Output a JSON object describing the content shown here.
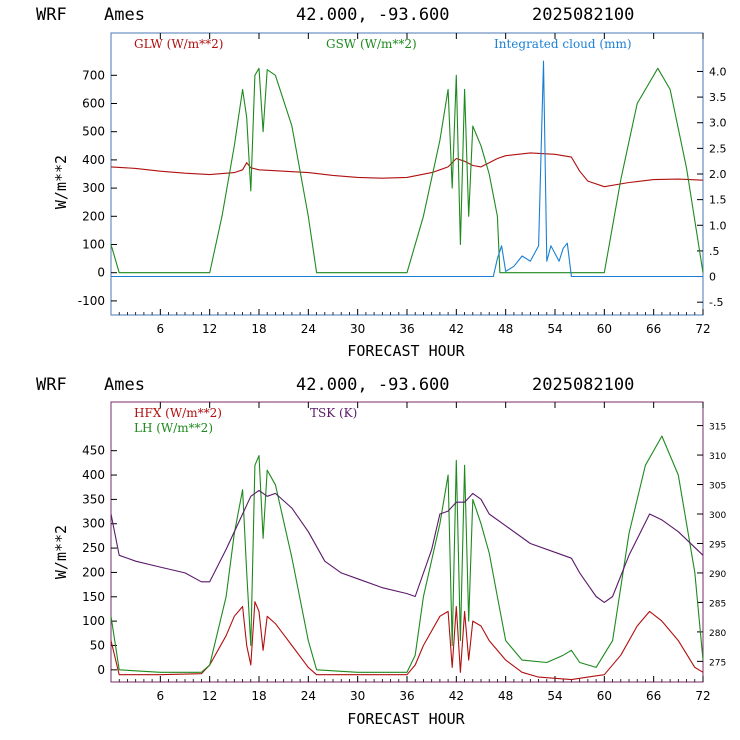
{
  "panels": [
    {
      "header": {
        "model": "WRF",
        "site": "Ames",
        "coords": "42.000, -93.600",
        "run": "2025082100"
      },
      "xlabel": "FORECAST HOUR",
      "ylabel": "W/m**2",
      "legend": [
        "GLW (W/m**2)",
        "GSW (W/m**2)",
        "Integrated cloud (mm)"
      ]
    },
    {
      "header": {
        "model": "WRF",
        "site": "Ames",
        "coords": "42.000, -93.600",
        "run": "2025082100"
      },
      "xlabel": "FORECAST HOUR",
      "ylabel": "W/m**2",
      "legend": [
        "HFX (W/m**2)",
        "LH (W/m**2)",
        "TSK (K)"
      ]
    }
  ],
  "chart_data": [
    {
      "type": "line",
      "xlim": [
        0,
        72
      ],
      "ylim": [
        -150,
        850
      ],
      "y2lim": [
        -0.75,
        4.75
      ],
      "x_ticks": [
        6,
        12,
        18,
        24,
        30,
        36,
        42,
        48,
        54,
        60,
        66,
        72
      ],
      "y_ticks": [
        -100,
        0,
        100,
        200,
        300,
        400,
        500,
        600,
        700
      ],
      "y2_ticks": [
        -0.5,
        0,
        0.5,
        1.0,
        1.5,
        2.0,
        2.5,
        3.0,
        3.5,
        4.0
      ],
      "y2_tick_labels": [
        "-.5",
        "0",
        ".5",
        "1.0",
        "1.5",
        "2.0",
        "2.5",
        "3.0",
        "3.5",
        "4.0"
      ],
      "series": [
        {
          "name": "GLW (W/m**2)",
          "axis": "left",
          "color": "#b01010",
          "x": [
            0,
            3,
            6,
            9,
            12,
            15,
            16,
            16.5,
            17,
            18,
            21,
            24,
            27,
            30,
            33,
            36,
            39,
            40,
            41,
            42,
            43,
            44,
            45,
            46,
            47,
            48,
            51,
            54,
            56,
            57,
            58,
            60,
            63,
            66,
            69,
            72
          ],
          "y": [
            375,
            370,
            360,
            353,
            348,
            355,
            365,
            390,
            372,
            365,
            360,
            355,
            345,
            338,
            335,
            338,
            355,
            365,
            375,
            405,
            395,
            380,
            375,
            390,
            405,
            415,
            425,
            420,
            410,
            360,
            325,
            305,
            320,
            330,
            332,
            328
          ]
        },
        {
          "name": "GSW (W/m**2)",
          "axis": "left",
          "color": "#1e8a1e",
          "x": [
            0,
            1,
            12,
            13.5,
            15,
            16,
            16.5,
            17,
            17.5,
            18,
            18.5,
            19,
            20,
            22,
            24,
            25,
            36,
            38,
            40,
            41,
            41.5,
            42,
            42.5,
            43,
            43.5,
            44,
            45,
            46,
            47,
            47.3,
            60,
            62,
            64,
            66.5,
            68,
            70,
            72
          ],
          "y": [
            100,
            0,
            0,
            200,
            450,
            650,
            550,
            290,
            700,
            725,
            500,
            720,
            700,
            520,
            200,
            0,
            0,
            200,
            470,
            650,
            300,
            700,
            100,
            650,
            200,
            520,
            450,
            350,
            200,
            0,
            0,
            330,
            600,
            725,
            650,
            370,
            0
          ]
        },
        {
          "name": "Integrated cloud (mm)",
          "axis": "right",
          "color": "#1a7fd4",
          "x": [
            0,
            46.5,
            47,
            47.5,
            48,
            49,
            50,
            51,
            52,
            52.6,
            53,
            53.5,
            54,
            54.5,
            55,
            55.5,
            56,
            72
          ],
          "y": [
            0,
            0,
            0.35,
            0.6,
            0.1,
            0.2,
            0.4,
            0.3,
            0.6,
            4.2,
            0.3,
            0.6,
            0.45,
            0.3,
            0.55,
            0.65,
            0,
            0
          ]
        }
      ]
    },
    {
      "type": "line",
      "xlim": [
        0,
        72
      ],
      "ylim": [
        -25,
        550
      ],
      "y2lim": [
        271.5,
        319
      ],
      "x_ticks": [
        6,
        12,
        18,
        24,
        30,
        36,
        42,
        48,
        54,
        60,
        66,
        72
      ],
      "y_ticks": [
        0,
        50,
        100,
        150,
        200,
        250,
        300,
        350,
        400,
        450
      ],
      "y2_ticks": [
        275,
        280,
        285,
        290,
        295,
        300,
        305,
        310,
        315
      ],
      "series": [
        {
          "name": "HFX (W/m**2)",
          "axis": "left",
          "color": "#b01010",
          "x": [
            0,
            1,
            6,
            11,
            12,
            14,
            15,
            16,
            16.5,
            17,
            17.5,
            18,
            18.5,
            19,
            20,
            22,
            24,
            25,
            30,
            36,
            37,
            38,
            40,
            41,
            41.5,
            42,
            42.5,
            43,
            43.5,
            44,
            45,
            46,
            48,
            50,
            52,
            56,
            58,
            60,
            62,
            64,
            65.5,
            67,
            69,
            71,
            72
          ],
          "y": [
            60,
            -10,
            -10,
            -8,
            10,
            70,
            110,
            130,
            50,
            10,
            140,
            120,
            40,
            110,
            95,
            50,
            5,
            -10,
            -10,
            -10,
            10,
            50,
            110,
            120,
            5,
            130,
            -5,
            120,
            20,
            100,
            90,
            60,
            20,
            -5,
            -15,
            -20,
            -15,
            -10,
            30,
            90,
            120,
            100,
            60,
            5,
            -5
          ]
        },
        {
          "name": "LH (W/m**2)",
          "axis": "left",
          "color": "#1e8a1e",
          "x": [
            0,
            1,
            6,
            11,
            12,
            14,
            15,
            16,
            16.5,
            17,
            17.5,
            18,
            18.5,
            19,
            20,
            22,
            24,
            25,
            30,
            36,
            37,
            38,
            40,
            41,
            41.5,
            42,
            42.5,
            43,
            43.5,
            44,
            45,
            46,
            47,
            48,
            50,
            53,
            55,
            56,
            57,
            59,
            61,
            63,
            65,
            67,
            69,
            71,
            72
          ],
          "y": [
            110,
            0,
            -5,
            -5,
            10,
            150,
            280,
            370,
            200,
            50,
            420,
            440,
            270,
            410,
            380,
            230,
            60,
            0,
            -5,
            -5,
            30,
            150,
            300,
            400,
            50,
            430,
            60,
            420,
            100,
            350,
            300,
            240,
            150,
            60,
            20,
            15,
            30,
            40,
            15,
            5,
            60,
            280,
            420,
            480,
            400,
            200,
            20
          ]
        },
        {
          "name": "TSK (K)",
          "axis": "right",
          "color": "#5a1a6a",
          "x": [
            0,
            1,
            3,
            6,
            9,
            11,
            12,
            14,
            16,
            17,
            18,
            19,
            20,
            22,
            24,
            26,
            28,
            30,
            33,
            36,
            37,
            39,
            40,
            41,
            42,
            43,
            44,
            45,
            46,
            48,
            51,
            54,
            56,
            57,
            58,
            59,
            60,
            61,
            63,
            65.5,
            67,
            69,
            72
          ],
          "y": [
            300,
            293,
            292,
            291,
            290,
            288.5,
            288.5,
            294,
            300,
            303,
            304,
            303,
            303.5,
            301,
            297,
            292,
            290,
            289,
            287.5,
            286.5,
            286,
            294,
            300,
            300.5,
            302,
            302,
            303.5,
            302.5,
            300,
            298,
            295,
            293.5,
            292.5,
            290,
            288,
            286,
            285,
            286,
            293,
            300,
            299,
            297,
            293
          ]
        }
      ]
    }
  ]
}
